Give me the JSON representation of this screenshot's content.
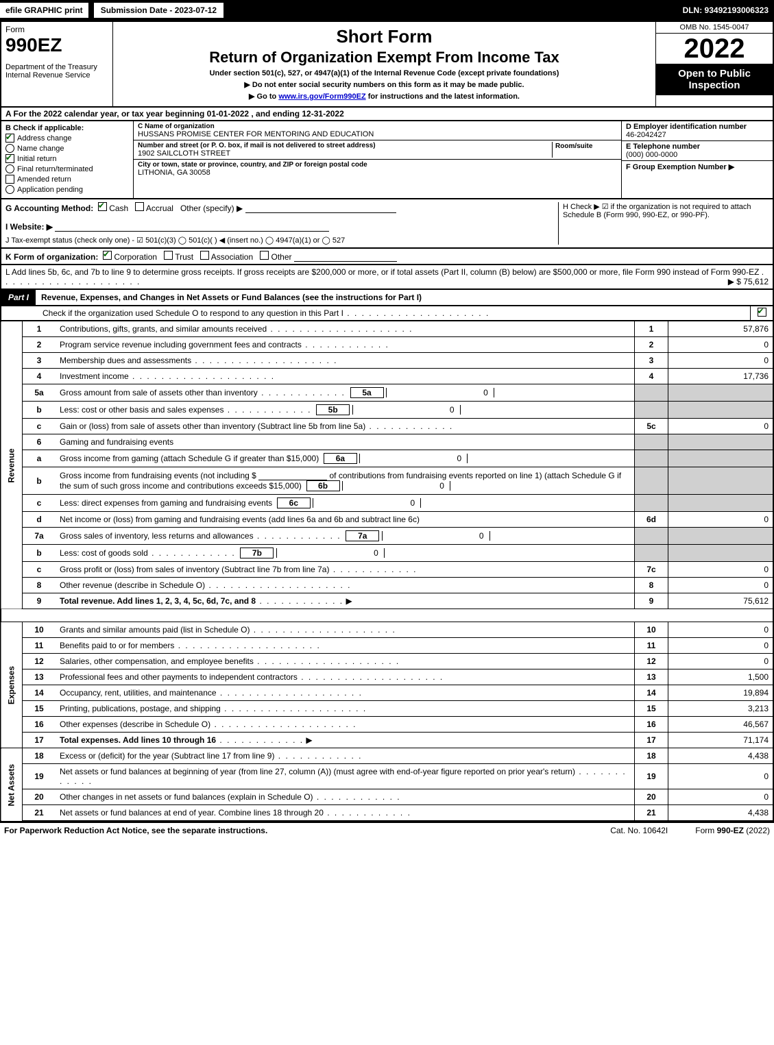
{
  "topbar": {
    "efile": "efile GRAPHIC print",
    "submission_label": "Submission Date - 2023-07-12",
    "dln": "DLN: 93492193006323"
  },
  "header": {
    "form_word": "Form",
    "form_num": "990EZ",
    "dept": "Department of the Treasury\nInternal Revenue Service",
    "title1": "Short Form",
    "title2": "Return of Organization Exempt From Income Tax",
    "subtitle": "Under section 501(c), 527, or 4947(a)(1) of the Internal Revenue Code (except private foundations)",
    "note1": "▶ Do not enter social security numbers on this form as it may be made public.",
    "note2_pre": "▶ Go to ",
    "note2_link": "www.irs.gov/Form990EZ",
    "note2_post": " for instructions and the latest information.",
    "omb": "OMB No. 1545-0047",
    "year": "2022",
    "open": "Open to Public Inspection"
  },
  "rowA": "A  For the 2022 calendar year, or tax year beginning 01-01-2022 , and ending 12-31-2022",
  "B": {
    "head": "B  Check if applicable:",
    "items": [
      {
        "label": "Address change",
        "checked": true,
        "round": false
      },
      {
        "label": "Name change",
        "checked": false,
        "round": true
      },
      {
        "label": "Initial return",
        "checked": true,
        "round": false
      },
      {
        "label": "Final return/terminated",
        "checked": false,
        "round": true
      },
      {
        "label": "Amended return",
        "checked": false,
        "round": false
      },
      {
        "label": "Application pending",
        "checked": false,
        "round": true
      }
    ]
  },
  "C": {
    "name_label": "C Name of organization",
    "name": "HUSSANS PROMISE CENTER FOR MENTORING AND EDUCATION",
    "street_label": "Number and street (or P. O. box, if mail is not delivered to street address)",
    "room_label": "Room/suite",
    "street": "1902 SAILCLOTH STREET",
    "city_label": "City or town, state or province, country, and ZIP or foreign postal code",
    "city": "LITHONIA, GA  30058"
  },
  "D": {
    "ein_label": "D Employer identification number",
    "ein": "46-2042427",
    "phone_label": "E Telephone number",
    "phone": "(000) 000-0000",
    "group_label": "F Group Exemption Number   ▶"
  },
  "G": {
    "label": "G Accounting Method:",
    "cash": "Cash",
    "accr": "Accrual",
    "other": "Other (specify) ▶"
  },
  "H": "H  Check ▶ ☑ if the organization is not required to attach Schedule B (Form 990, 990-EZ, or 990-PF).",
  "I": "I Website: ▶",
  "J": "J Tax-exempt status (check only one) - ☑ 501(c)(3)  ◯ 501(c)(  ) ◀ (insert no.)  ◯ 4947(a)(1) or  ◯ 527",
  "K": {
    "pre": "K Form of organization:",
    "corp": "Corporation",
    "trust": "Trust",
    "assoc": "Association",
    "other": "Other"
  },
  "L": {
    "text": "L Add lines 5b, 6c, and 7b to line 9 to determine gross receipts. If gross receipts are $200,000 or more, or if total assets (Part II, column (B) below) are $500,000 or more, file Form 990 instead of Form 990-EZ",
    "value": "▶ $ 75,612"
  },
  "part1": {
    "tab": "Part I",
    "title": "Revenue, Expenses, and Changes in Net Assets or Fund Balances (see the instructions for Part I)",
    "schedO": "Check if the organization used Schedule O to respond to any question in this Part I"
  },
  "revenue_label": "Revenue",
  "expenses_label": "Expenses",
  "netassets_label": "Net Assets",
  "lines": {
    "l1": {
      "n": "1",
      "d": "Contributions, gifts, grants, and similar amounts received",
      "rn": "1",
      "amt": "57,876"
    },
    "l2": {
      "n": "2",
      "d": "Program service revenue including government fees and contracts",
      "rn": "2",
      "amt": "0"
    },
    "l3": {
      "n": "3",
      "d": "Membership dues and assessments",
      "rn": "3",
      "amt": "0"
    },
    "l4": {
      "n": "4",
      "d": "Investment income",
      "rn": "4",
      "amt": "17,736"
    },
    "l5a": {
      "n": "5a",
      "d": "Gross amount from sale of assets other than inventory",
      "box": "5a",
      "val": "0"
    },
    "l5b": {
      "n": "b",
      "d": "Less: cost or other basis and sales expenses",
      "box": "5b",
      "val": "0"
    },
    "l5c": {
      "n": "c",
      "d": "Gain or (loss) from sale of assets other than inventory (Subtract line 5b from line 5a)",
      "rn": "5c",
      "amt": "0"
    },
    "l6": {
      "n": "6",
      "d": "Gaming and fundraising events"
    },
    "l6a": {
      "n": "a",
      "d": "Gross income from gaming (attach Schedule G if greater than $15,000)",
      "box": "6a",
      "val": "0"
    },
    "l6b": {
      "n": "b",
      "d1": "Gross income from fundraising events (not including $",
      "d2": "of contributions from fundraising events reported on line 1) (attach Schedule G if the sum of such gross income and contributions exceeds $15,000)",
      "box": "6b",
      "val": "0"
    },
    "l6c": {
      "n": "c",
      "d": "Less: direct expenses from gaming and fundraising events",
      "box": "6c",
      "val": "0"
    },
    "l6d": {
      "n": "d",
      "d": "Net income or (loss) from gaming and fundraising events (add lines 6a and 6b and subtract line 6c)",
      "rn": "6d",
      "amt": "0"
    },
    "l7a": {
      "n": "7a",
      "d": "Gross sales of inventory, less returns and allowances",
      "box": "7a",
      "val": "0"
    },
    "l7b": {
      "n": "b",
      "d": "Less: cost of goods sold",
      "box": "7b",
      "val": "0"
    },
    "l7c": {
      "n": "c",
      "d": "Gross profit or (loss) from sales of inventory (Subtract line 7b from line 7a)",
      "rn": "7c",
      "amt": "0"
    },
    "l8": {
      "n": "8",
      "d": "Other revenue (describe in Schedule O)",
      "rn": "8",
      "amt": "0"
    },
    "l9": {
      "n": "9",
      "d": "Total revenue. Add lines 1, 2, 3, 4, 5c, 6d, 7c, and 8",
      "rn": "9",
      "amt": "75,612",
      "bold": true,
      "arrow": true
    },
    "l10": {
      "n": "10",
      "d": "Grants and similar amounts paid (list in Schedule O)",
      "rn": "10",
      "amt": "0"
    },
    "l11": {
      "n": "11",
      "d": "Benefits paid to or for members",
      "rn": "11",
      "amt": "0"
    },
    "l12": {
      "n": "12",
      "d": "Salaries, other compensation, and employee benefits",
      "rn": "12",
      "amt": "0"
    },
    "l13": {
      "n": "13",
      "d": "Professional fees and other payments to independent contractors",
      "rn": "13",
      "amt": "1,500"
    },
    "l14": {
      "n": "14",
      "d": "Occupancy, rent, utilities, and maintenance",
      "rn": "14",
      "amt": "19,894"
    },
    "l15": {
      "n": "15",
      "d": "Printing, publications, postage, and shipping",
      "rn": "15",
      "amt": "3,213"
    },
    "l16": {
      "n": "16",
      "d": "Other expenses (describe in Schedule O)",
      "rn": "16",
      "amt": "46,567"
    },
    "l17": {
      "n": "17",
      "d": "Total expenses. Add lines 10 through 16",
      "rn": "17",
      "amt": "71,174",
      "bold": true,
      "arrow": true
    },
    "l18": {
      "n": "18",
      "d": "Excess or (deficit) for the year (Subtract line 17 from line 9)",
      "rn": "18",
      "amt": "4,438"
    },
    "l19": {
      "n": "19",
      "d": "Net assets or fund balances at beginning of year (from line 27, column (A)) (must agree with end-of-year figure reported on prior year's return)",
      "rn": "19",
      "amt": "0"
    },
    "l20": {
      "n": "20",
      "d": "Other changes in net assets or fund balances (explain in Schedule O)",
      "rn": "20",
      "amt": "0"
    },
    "l21": {
      "n": "21",
      "d": "Net assets or fund balances at end of year. Combine lines 18 through 20",
      "rn": "21",
      "amt": "4,438"
    }
  },
  "footer": {
    "left": "For Paperwork Reduction Act Notice, see the separate instructions.",
    "center": "Cat. No. 10642I",
    "right_pre": "Form ",
    "right_bold": "990-EZ",
    "right_post": " (2022)"
  }
}
